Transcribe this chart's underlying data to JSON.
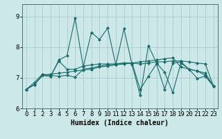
{
  "xlabel": "Humidex (Indice chaleur)",
  "xlim": [
    -0.5,
    23.5
  ],
  "ylim": [
    6.0,
    9.4
  ],
  "yticks": [
    6,
    7,
    8,
    9
  ],
  "xticks": [
    0,
    1,
    2,
    3,
    4,
    5,
    6,
    7,
    8,
    9,
    10,
    11,
    12,
    13,
    14,
    15,
    16,
    17,
    18,
    19,
    20,
    21,
    22,
    23
  ],
  "bg_color": "#cce8e8",
  "grid_color": "#aacccc",
  "line_color": "#1a6b6b",
  "lines": [
    [
      6.62,
      6.78,
      7.08,
      7.05,
      7.58,
      7.72,
      8.95,
      7.35,
      8.48,
      8.25,
      8.62,
      7.42,
      8.6,
      7.42,
      6.42,
      8.05,
      7.48,
      7.18,
      6.52,
      7.48,
      7.28,
      6.98,
      7.05,
      6.72
    ],
    [
      6.62,
      6.85,
      7.12,
      7.08,
      7.05,
      7.08,
      7.02,
      7.28,
      7.32,
      7.38,
      7.42,
      7.45,
      7.48,
      7.48,
      7.45,
      7.48,
      7.52,
      7.52,
      7.55,
      7.55,
      7.52,
      7.48,
      7.45,
      6.72
    ],
    [
      6.62,
      6.78,
      7.08,
      7.12,
      7.15,
      7.18,
      7.22,
      7.25,
      7.28,
      7.35,
      7.38,
      7.42,
      7.45,
      7.48,
      7.52,
      7.55,
      7.58,
      7.62,
      7.65,
      7.35,
      7.28,
      7.22,
      7.15,
      6.72
    ],
    [
      6.62,
      6.78,
      7.08,
      7.05,
      7.55,
      7.28,
      7.28,
      7.38,
      7.42,
      7.45,
      7.45,
      7.45,
      7.48,
      7.48,
      6.62,
      7.05,
      7.45,
      6.62,
      7.48,
      7.52,
      7.28,
      7.22,
      7.08,
      6.72
    ]
  ],
  "tick_fontsize": 6.5,
  "xlabel_fontsize": 7,
  "ylabel_fontsize": 7
}
